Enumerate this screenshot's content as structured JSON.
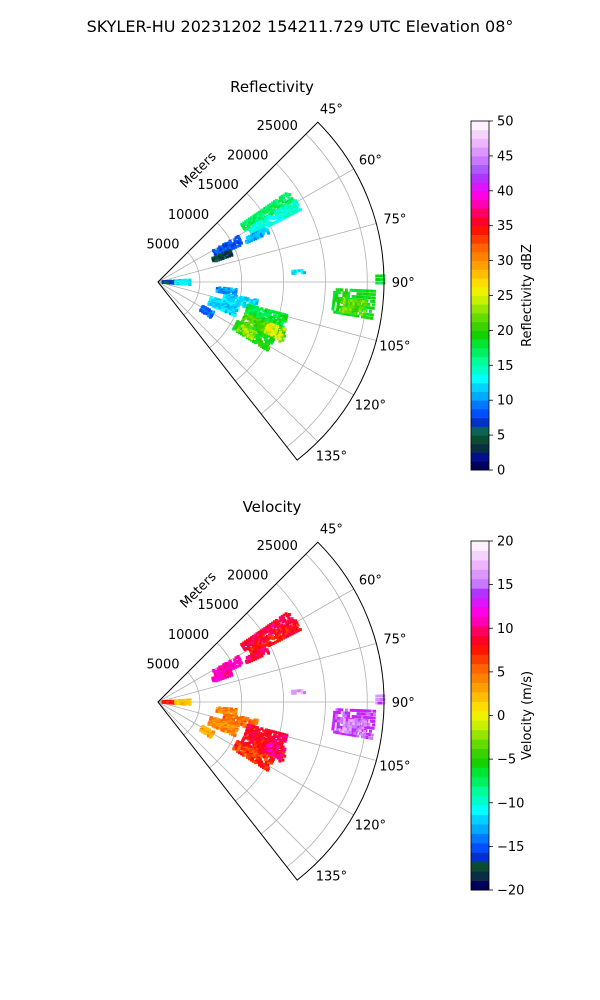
{
  "figure": {
    "suptitle": "SKYLER-HU  20231202  154211.729 UTC Elevation 08°"
  },
  "chart_data": [
    {
      "type": "heatmap",
      "title": "Reflectivity",
      "range_label": "Meters",
      "range_ticks": [
        5000,
        10000,
        15000,
        20000,
        25000
      ],
      "range_lim": [
        0,
        27000
      ],
      "azimuth_lim_deg": [
        45,
        142
      ],
      "azimuth_ticks_deg": [
        45,
        60,
        75,
        90,
        105,
        120,
        135
      ],
      "azimuth_tick_labels": [
        "45°",
        "60°",
        "75°",
        "90°",
        "105°",
        "120°",
        "135°"
      ],
      "grid": true,
      "colorbar": {
        "label": "Reflectivity dBZ",
        "min": 0,
        "max": 50,
        "ticks": [
          0,
          5,
          10,
          15,
          20,
          25,
          30,
          35,
          40,
          45,
          50
        ],
        "tick_labels": [
          "0",
          "5",
          "10",
          "15",
          "20",
          "25",
          "30",
          "35",
          "40",
          "45",
          "50"
        ],
        "colors": [
          "#00005a",
          "#000f8c",
          "#0a2d46",
          "#0a4b32",
          "#0a6450",
          "#0032c8",
          "#0050ff",
          "#0078ff",
          "#00aaff",
          "#00d2ff",
          "#00ffff",
          "#00ffc8",
          "#00ff96",
          "#00f064",
          "#00e632",
          "#14d200",
          "#3cd200",
          "#64dc00",
          "#96e600",
          "#c8f000",
          "#f0f000",
          "#ffdc00",
          "#ffbe00",
          "#ffa000",
          "#ff8200",
          "#ff6400",
          "#ff3c00",
          "#ff1400",
          "#ff0028",
          "#ff0064",
          "#ff00b4",
          "#ff00e6",
          "#dc14ff",
          "#b432ff",
          "#aa5aff",
          "#c878ff",
          "#dc96ff",
          "#eeb4ff",
          "#f5d2ff",
          "#fff0ff"
        ]
      },
      "cells": [
        {
          "az": [
            55,
            59
          ],
          "r": [
            12000,
            19000
          ],
          "v": 17
        },
        {
          "az": [
            59,
            63
          ],
          "r": [
            12500,
            19000
          ],
          "v": 14
        },
        {
          "az": [
            63,
            66
          ],
          "r": [
            11500,
            14500
          ],
          "v": 11
        },
        {
          "az": [
            60,
            66
          ],
          "r": [
            7500,
            11000
          ],
          "v": 8
        },
        {
          "az": [
            66,
            70
          ],
          "r": [
            7000,
            9500
          ],
          "v": 4
        },
        {
          "az": [
            86,
            95
          ],
          "r": [
            500,
            2500
          ],
          "v": 6
        },
        {
          "az": [
            86,
            95
          ],
          "r": [
            2000,
            3800
          ],
          "v": 13
        },
        {
          "az": [
            85,
            86.5
          ],
          "r": [
            16000,
            17500
          ],
          "v": 12
        },
        {
          "az": [
            88,
            90
          ],
          "r": [
            26000,
            27000
          ],
          "v": 18
        },
        {
          "az": [
            92,
            100
          ],
          "r": [
            21000,
            26000
          ],
          "v": 19
        },
        {
          "az": [
            95,
            99
          ],
          "r": [
            22000,
            25000
          ],
          "v": 22
        },
        {
          "az": [
            100,
            106
          ],
          "r": [
            8000,
            12000
          ],
          "v": 12
        },
        {
          "az": [
            106,
            114
          ],
          "r": [
            6500,
            10000
          ],
          "v": 12
        },
        {
          "az": [
            104,
            110
          ],
          "r": [
            11000,
            16000
          ],
          "v": 18
        },
        {
          "az": [
            110,
            116
          ],
          "r": [
            11000,
            16500
          ],
          "v": 21
        },
        {
          "az": [
            116,
            122
          ],
          "r": [
            10500,
            15500
          ],
          "v": 19
        },
        {
          "az": [
            110,
            115
          ],
          "r": [
            14000,
            16000
          ],
          "v": 25
        },
        {
          "az": [
            117,
            121
          ],
          "r": [
            11000,
            13000
          ],
          "v": 23
        },
        {
          "az": [
            118,
            124
          ],
          "r": [
            6000,
            7500
          ],
          "v": 9
        },
        {
          "az": [
            95,
            99
          ],
          "r": [
            7000,
            9500
          ],
          "v": 10
        }
      ]
    },
    {
      "type": "heatmap",
      "title": "Velocity",
      "range_label": "Meters",
      "range_ticks": [
        5000,
        10000,
        15000,
        20000,
        25000
      ],
      "range_lim": [
        0,
        27000
      ],
      "azimuth_lim_deg": [
        45,
        142
      ],
      "azimuth_ticks_deg": [
        45,
        60,
        75,
        90,
        105,
        120,
        135
      ],
      "azimuth_tick_labels": [
        "45°",
        "60°",
        "75°",
        "90°",
        "105°",
        "120°",
        "135°"
      ],
      "grid": true,
      "colorbar": {
        "label": "Velocity (m/s)",
        "min": -20,
        "max": 20,
        "ticks": [
          -20,
          -15,
          -10,
          -5,
          0,
          5,
          10,
          15,
          20
        ],
        "tick_labels": [
          "−20",
          "−15",
          "−10",
          "−5",
          "0",
          "5",
          "10",
          "15",
          "20"
        ],
        "colors": [
          "#00005a",
          "#0a2d46",
          "#0a4b32",
          "#0032c8",
          "#0050ff",
          "#0078ff",
          "#00aaff",
          "#00d2ff",
          "#00ffff",
          "#00ffc8",
          "#00ff96",
          "#00f064",
          "#00e632",
          "#14d200",
          "#3cd200",
          "#64dc00",
          "#96e600",
          "#c8f000",
          "#f0f000",
          "#ffdc00",
          "#ffbe00",
          "#ffa000",
          "#ff8200",
          "#ff6400",
          "#ff3c00",
          "#ff1400",
          "#ff0028",
          "#ff0064",
          "#ff00b4",
          "#ff00e6",
          "#dc14ff",
          "#b432ff",
          "#c878ff",
          "#dc96ff",
          "#eeb4ff",
          "#f5d2ff",
          "#fff0ff"
        ]
      },
      "cells": [
        {
          "az": [
            55,
            59
          ],
          "r": [
            12000,
            19000
          ],
          "v": 9
        },
        {
          "az": [
            59,
            63
          ],
          "r": [
            12500,
            19000
          ],
          "v": 8
        },
        {
          "az": [
            63,
            66
          ],
          "r": [
            11500,
            14500
          ],
          "v": 9
        },
        {
          "az": [
            60,
            66
          ],
          "r": [
            7500,
            11000
          ],
          "v": 11
        },
        {
          "az": [
            66,
            70
          ],
          "r": [
            7000,
            9500
          ],
          "v": 11
        },
        {
          "az": [
            86,
            95
          ],
          "r": [
            500,
            2500
          ],
          "v": 7
        },
        {
          "az": [
            86,
            95
          ],
          "r": [
            2000,
            3800
          ],
          "v": 2
        },
        {
          "az": [
            85,
            86.5
          ],
          "r": [
            16000,
            17500
          ],
          "v": 16
        },
        {
          "az": [
            88,
            90
          ],
          "r": [
            26000,
            27000
          ],
          "v": 15
        },
        {
          "az": [
            92,
            100
          ],
          "r": [
            21000,
            26000
          ],
          "v": 14
        },
        {
          "az": [
            95,
            99
          ],
          "r": [
            22000,
            25000
          ],
          "v": 16
        },
        {
          "az": [
            100,
            106
          ],
          "r": [
            8000,
            12000
          ],
          "v": 5
        },
        {
          "az": [
            106,
            114
          ],
          "r": [
            6500,
            10000
          ],
          "v": 4
        },
        {
          "az": [
            104,
            110
          ],
          "r": [
            11000,
            16000
          ],
          "v": 9
        },
        {
          "az": [
            110,
            116
          ],
          "r": [
            11000,
            16500
          ],
          "v": 8
        },
        {
          "az": [
            116,
            122
          ],
          "r": [
            10500,
            15500
          ],
          "v": 7
        },
        {
          "az": [
            110,
            115
          ],
          "r": [
            14000,
            16000
          ],
          "v": 10
        },
        {
          "az": [
            117,
            121
          ],
          "r": [
            11000,
            13000
          ],
          "v": 6
        },
        {
          "az": [
            118,
            124
          ],
          "r": [
            6000,
            7500
          ],
          "v": 3
        },
        {
          "az": [
            95,
            99
          ],
          "r": [
            7000,
            9500
          ],
          "v": 4
        }
      ]
    }
  ]
}
